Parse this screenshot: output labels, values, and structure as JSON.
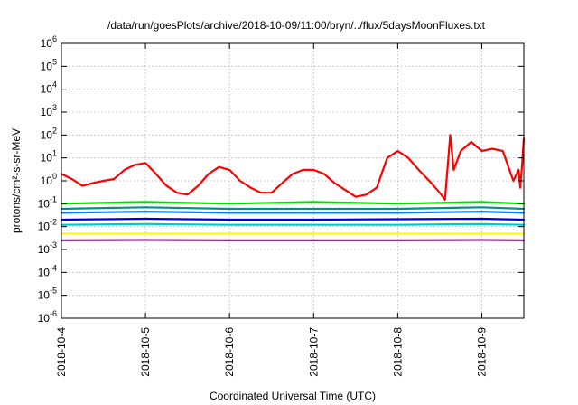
{
  "chart_data": {
    "type": "line",
    "title": "/data/run/goesPlots/archive/2018-10-09/11:00/bryn/../flux/5daysMoonFluxes.txt",
    "xlabel": "Coordinated Universal Time (UTC)",
    "ylabel": "protons/cm²-s-sr-MeV",
    "yscale": "log",
    "ylim": [
      1e-06,
      1000000.0
    ],
    "xlim": [
      "2018-10-04T00:00",
      "2018-10-09T12:00"
    ],
    "grid": true,
    "yticks": [
      {
        "base": "10",
        "exp": "-6",
        "value": 1e-06
      },
      {
        "base": "10",
        "exp": "-5",
        "value": 1e-05
      },
      {
        "base": "10",
        "exp": "-4",
        "value": 0.0001
      },
      {
        "base": "10",
        "exp": "-3",
        "value": 0.001
      },
      {
        "base": "10",
        "exp": "-2",
        "value": 0.01
      },
      {
        "base": "10",
        "exp": "-1",
        "value": 0.1
      },
      {
        "base": "10",
        "exp": "0",
        "value": 1
      },
      {
        "base": "10",
        "exp": "1",
        "value": 10
      },
      {
        "base": "10",
        "exp": "2",
        "value": 100
      },
      {
        "base": "10",
        "exp": "3",
        "value": 1000
      },
      {
        "base": "10",
        "exp": "4",
        "value": 10000
      },
      {
        "base": "10",
        "exp": "5",
        "value": 100000
      },
      {
        "base": "10",
        "exp": "6",
        "value": 1000000
      }
    ],
    "xticks": [
      "2018-10-4",
      "2018-10-5",
      "2018-10-6",
      "2018-10-7",
      "2018-10-8",
      "2018-10-9"
    ],
    "series": [
      {
        "color": "#ff0000",
        "x": [
          "2018-10-04T00:00",
          "2018-10-04T03:00",
          "2018-10-04T06:00",
          "2018-10-04T09:00",
          "2018-10-04T12:00",
          "2018-10-04T15:00",
          "2018-10-04T18:00",
          "2018-10-04T21:00",
          "2018-10-05T00:00",
          "2018-10-05T03:00",
          "2018-10-05T06:00",
          "2018-10-05T09:00",
          "2018-10-05T12:00",
          "2018-10-05T15:00",
          "2018-10-05T18:00",
          "2018-10-05T21:00",
          "2018-10-06T00:00",
          "2018-10-06T03:00",
          "2018-10-06T06:00",
          "2018-10-06T09:00",
          "2018-10-06T12:00",
          "2018-10-06T15:00",
          "2018-10-06T18:00",
          "2018-10-06T21:00",
          "2018-10-07T00:00",
          "2018-10-07T03:00",
          "2018-10-07T06:00",
          "2018-10-07T09:00",
          "2018-10-07T12:00",
          "2018-10-07T15:00",
          "2018-10-07T18:00",
          "2018-10-07T21:00",
          "2018-10-08T00:00",
          "2018-10-08T03:00",
          "2018-10-08T06:00",
          "2018-10-08T09:00",
          "2018-10-08T12:00",
          "2018-10-08T13:30",
          "2018-10-08T15:00",
          "2018-10-08T16:00",
          "2018-10-08T18:00",
          "2018-10-08T21:00",
          "2018-10-09T00:00",
          "2018-10-09T03:00",
          "2018-10-09T06:00",
          "2018-10-09T09:00",
          "2018-10-09T10:30",
          "2018-10-09T11:00",
          "2018-10-09T11:30",
          "2018-10-09T12:00"
        ],
        "values": [
          2,
          1.2,
          0.6,
          0.8,
          1,
          1.2,
          3,
          5,
          6,
          2,
          0.6,
          0.3,
          0.25,
          0.6,
          2,
          4,
          3,
          1,
          0.5,
          0.3,
          0.3,
          0.8,
          2,
          3,
          3,
          2,
          0.8,
          0.4,
          0.2,
          0.25,
          0.5,
          10,
          20,
          10,
          3,
          1,
          0.3,
          0.15,
          100,
          3,
          20,
          50,
          20,
          25,
          20,
          1,
          3,
          0.5,
          5,
          70
        ]
      },
      {
        "color": "#00e000",
        "x": [
          "2018-10-04T00:00",
          "2018-10-05T00:00",
          "2018-10-06T00:00",
          "2018-10-07T00:00",
          "2018-10-08T00:00",
          "2018-10-09T00:00",
          "2018-10-09T12:00"
        ],
        "values": [
          0.1,
          0.12,
          0.1,
          0.12,
          0.1,
          0.12,
          0.1
        ]
      },
      {
        "color": "#009090",
        "x": [
          "2018-10-04T00:00",
          "2018-10-05T00:00",
          "2018-10-06T00:00",
          "2018-10-07T00:00",
          "2018-10-08T00:00",
          "2018-10-09T00:00",
          "2018-10-09T12:00"
        ],
        "values": [
          0.06,
          0.07,
          0.06,
          0.06,
          0.06,
          0.07,
          0.06
        ]
      },
      {
        "color": "#0080ff",
        "x": [
          "2018-10-04T00:00",
          "2018-10-05T00:00",
          "2018-10-06T00:00",
          "2018-10-07T00:00",
          "2018-10-08T00:00",
          "2018-10-09T00:00",
          "2018-10-09T12:00"
        ],
        "values": [
          0.04,
          0.045,
          0.04,
          0.04,
          0.04,
          0.045,
          0.04
        ]
      },
      {
        "color": "#0000e0",
        "x": [
          "2018-10-04T00:00",
          "2018-10-05T00:00",
          "2018-10-06T00:00",
          "2018-10-07T00:00",
          "2018-10-08T00:00",
          "2018-10-09T00:00",
          "2018-10-09T12:00"
        ],
        "values": [
          0.02,
          0.022,
          0.02,
          0.02,
          0.021,
          0.022,
          0.02
        ]
      },
      {
        "color": "#00c8c8",
        "x": [
          "2018-10-04T00:00",
          "2018-10-05T00:00",
          "2018-10-06T00:00",
          "2018-10-07T00:00",
          "2018-10-08T00:00",
          "2018-10-09T00:00",
          "2018-10-09T12:00"
        ],
        "values": [
          0.012,
          0.013,
          0.012,
          0.012,
          0.012,
          0.013,
          0.012
        ]
      },
      {
        "color": "#ffff00",
        "x": [
          "2018-10-04T00:00",
          "2018-10-05T00:00",
          "2018-10-06T00:00",
          "2018-10-07T00:00",
          "2018-10-08T00:00",
          "2018-10-09T00:00",
          "2018-10-09T12:00"
        ],
        "values": [
          0.005,
          0.005,
          0.005,
          0.005,
          0.005,
          0.005,
          0.005
        ]
      },
      {
        "color": "#903090",
        "x": [
          "2018-10-04T00:00",
          "2018-10-05T00:00",
          "2018-10-06T00:00",
          "2018-10-07T00:00",
          "2018-10-08T00:00",
          "2018-10-09T00:00",
          "2018-10-09T12:00"
        ],
        "values": [
          0.0025,
          0.0026,
          0.0025,
          0.0025,
          0.0025,
          0.0026,
          0.0025
        ]
      }
    ]
  }
}
